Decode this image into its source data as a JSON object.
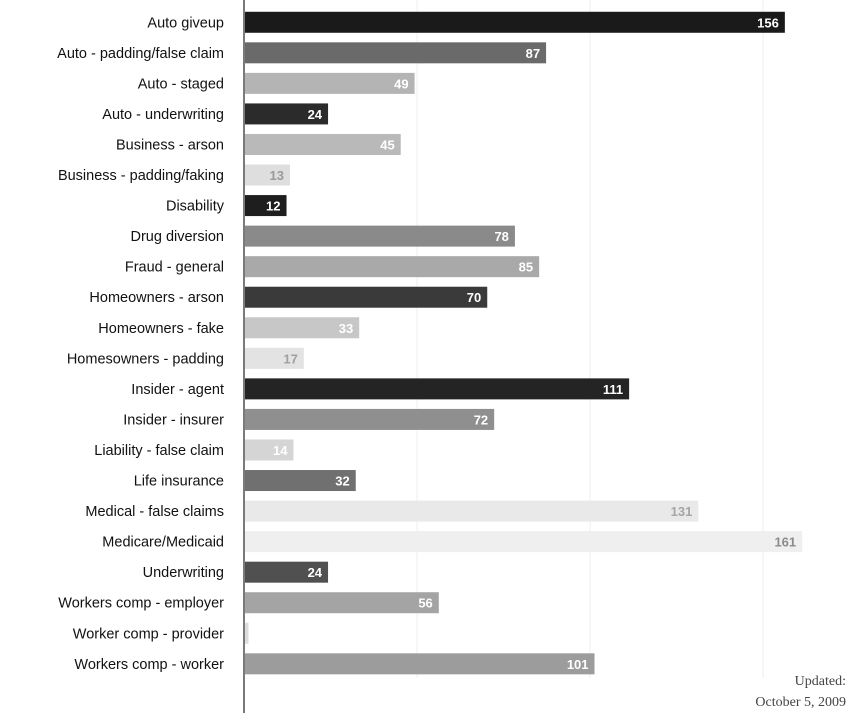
{
  "chart_data": {
    "type": "bar",
    "orientation": "horizontal",
    "categories": [
      "Auto giveup",
      "Auto - padding/false claim",
      "Auto - staged",
      "Auto - underwriting",
      "Business - arson",
      "Business - padding/faking",
      "Disability",
      "Drug diversion",
      "Fraud - general",
      "Homeowners - arson",
      "Homeowners - fake",
      "Homesowners - padding",
      "Insider - agent",
      "Insider - insurer",
      "Liability - false claim",
      "Life insurance",
      "Medical - false claims",
      "Medicare/Medicaid",
      "Underwriting",
      "Workers comp - employer",
      "Worker comp - provider",
      "Workers comp - worker"
    ],
    "values": [
      156,
      87,
      49,
      24,
      45,
      13,
      12,
      78,
      85,
      70,
      33,
      17,
      111,
      72,
      14,
      32,
      131,
      161,
      24,
      56,
      1,
      101
    ],
    "value_labels": [
      "156",
      "87",
      "49",
      "24",
      "45",
      "13",
      "12",
      "78",
      "85",
      "70",
      "33",
      "17",
      "111",
      "72",
      "14",
      "32",
      "131",
      "161",
      "24",
      "56",
      "",
      "101"
    ],
    "bar_colors": [
      "#1a1a1a",
      "#6a6a6a",
      "#b4b4b4",
      "#2b2b2b",
      "#b9b9b9",
      "#dedede",
      "#1e1e1e",
      "#8a8a8a",
      "#a9a9a9",
      "#3a3a3a",
      "#c7c7c7",
      "#e3e3e3",
      "#242424",
      "#8f8f8f",
      "#d5d5d5",
      "#707070",
      "#e9e9e9",
      "#efefef",
      "#505050",
      "#a4a4a4",
      "#dcdcdc",
      "#9c9c9c"
    ],
    "value_label_colors": [
      "#ffffff",
      "#ffffff",
      "#ffffff",
      "#ffffff",
      "#ffffff",
      "#9a9a9a",
      "#ffffff",
      "#ffffff",
      "#ffffff",
      "#ffffff",
      "#ffffff",
      "#a0a0a0",
      "#ffffff",
      "#ffffff",
      "#ffffff",
      "#ffffff",
      "#a6a6a6",
      "#8a8a8a",
      "#ffffff",
      "#ffffff",
      "#ffffff",
      "#ffffff"
    ],
    "xlim": [
      0,
      165
    ],
    "grid": true
  },
  "footer": {
    "updated_label": "Updated:",
    "updated_date": "October 5, 2009"
  }
}
